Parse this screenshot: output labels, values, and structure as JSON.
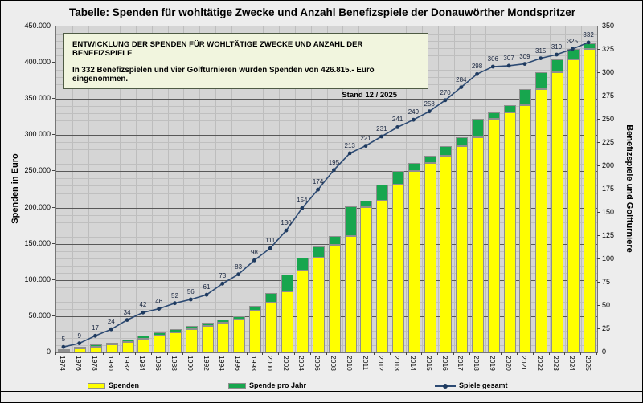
{
  "title": "Tabelle: Spenden für wohltätige Zwecke und Anzahl Benefizspiele der Donauwörther Mondspritzer",
  "info_box": {
    "line1": "ENTWICKLUNG DER SPENDEN FÜR WOHLTÄTIGE ZWECKE UND ANZAHL DER BENEFIZSPIELE",
    "line2": "In 332 Benefizspielen und vier Golfturnieren wurden Spenden von 426.815.- Euro eingenommen.",
    "line3": "Stand 12 / 2025"
  },
  "axes": {
    "left_title": "Spenden in Euro",
    "right_title": "Benefizspiele und Golfturniere"
  },
  "legend": [
    {
      "label": "Spenden",
      "color": "#FFFF00"
    },
    {
      "label": "Spende pro Jahr",
      "color": "#17A64E"
    },
    {
      "label": "Spiele gesamt",
      "color": "#2C4A73"
    }
  ],
  "chart_data": {
    "type": "combo: stacked bar (left axis) + line (right axis)",
    "title": "Tabelle: Spenden für wohltätige Zwecke und Anzahl Benefizspiele der Donauwörther Mondspritzer",
    "categories": [
      "1974",
      "1976",
      "1978",
      "1980",
      "1982",
      "1984",
      "1986",
      "1988",
      "1990",
      "1992",
      "1994",
      "1996",
      "1998",
      "2000",
      "2002",
      "2004",
      "2006",
      "2008",
      "2010",
      "2011",
      "2012",
      "2013",
      "2014",
      "2015",
      "2016",
      "2017",
      "2018",
      "2019",
      "2020",
      "2021",
      "2022",
      "2023",
      "2024",
      "2025"
    ],
    "series": [
      {
        "name": "Spenden",
        "type": "bar",
        "axis": "left",
        "color": "#FFFF00",
        "note": "Gesamthöhe des Balkens = kumulierte Spenden in Euro (geschätzt aus Gitterlinien); gelber Teil = kumuliert minus Spende pro Jahr",
        "cumulative_values": [
          5000,
          8000,
          11000,
          13500,
          18000,
          23000,
          27500,
          32000,
          36500,
          41000,
          46000,
          50000,
          64000,
          82000,
          108000,
          131000,
          146000,
          161000,
          202000,
          210000,
          232000,
          251000,
          262000,
          272000,
          285000,
          297000,
          323000,
          331000,
          341000,
          364000,
          387000,
          405000,
          418500,
          426815
        ]
      },
      {
        "name": "Spende pro Jahr",
        "type": "bar-top-segment",
        "axis": "left",
        "color": "#17A64E",
        "values": [
          2000,
          2500,
          3000,
          2500,
          4000,
          4500,
          4500,
          4500,
          4500,
          4500,
          5000,
          4000,
          6000,
          13000,
          24000,
          18000,
          15000,
          13000,
          41000,
          9000,
          22000,
          19000,
          11000,
          10000,
          13000,
          12000,
          26000,
          8000,
          10000,
          23000,
          23000,
          18000,
          13500,
          8315
        ]
      },
      {
        "name": "Spiele gesamt",
        "type": "line",
        "axis": "right",
        "color": "#2C4A73",
        "marker": "dot",
        "values": [
          5,
          9,
          17,
          24,
          34,
          42,
          46,
          52,
          56,
          61,
          73,
          83,
          98,
          111,
          130,
          154,
          174,
          195,
          213,
          221,
          231,
          241,
          249,
          258,
          270,
          284,
          298,
          306,
          307,
          309,
          315,
          319,
          325,
          332
        ]
      }
    ],
    "left_axis": {
      "title": "Spenden in Euro",
      "min": 0,
      "max": 450000,
      "major_step": 50000,
      "minor_step": 10000,
      "labels": [
        "0",
        "50.000",
        "100.000",
        "150.000",
        "200.000",
        "250.000",
        "300.000",
        "350.000",
        "400.000",
        "450.000"
      ]
    },
    "right_axis": {
      "title": "Benefizspiele und Golfturniere",
      "min": 0,
      "max": 350,
      "major_step": 25,
      "labels": [
        "0",
        "25",
        "50",
        "75",
        "100",
        "125",
        "150",
        "175",
        "200",
        "225",
        "250",
        "275",
        "300",
        "325",
        "350"
      ]
    },
    "grid": "minor grid on (both directions), major horizontal lines dark",
    "legend_position": "bottom"
  }
}
